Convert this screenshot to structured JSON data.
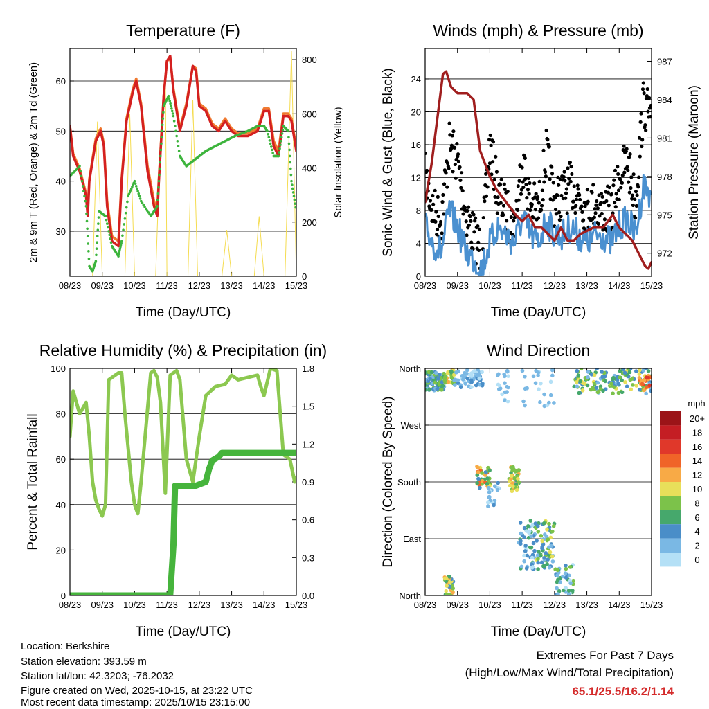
{
  "footer": {
    "location": "Location: Berkshire",
    "elevation": "Station elevation: 393.59 m",
    "latlon": "Station lat/lon: 42.3203; -76.2032",
    "created": "Figure created on Wed, 2025-10-15, at 23:22 UTC",
    "recent": "Most recent data timestamp: 2025/10/15 23:15:00",
    "extremes_title": "Extremes For Past 7 Days",
    "extremes_sub": "(High/Low/Max Wind/Total Precipitation)",
    "extremes_values": "65.1/25.5/16.2/1.14",
    "extremes_color": "#d42a2a"
  },
  "chart_data": [
    {
      "type": "line",
      "title": "Temperature (F)",
      "xlabel": "Time (Day/UTC)",
      "ylabel": "2m & 9m T (Red, Orange) & 2m Td (Green)",
      "ylabel_right": "Solar Insolation (Yellow)",
      "xticks": [
        "08/23",
        "09/23",
        "10/23",
        "11/23",
        "12/23",
        "13/23",
        "14/23",
        "15/23"
      ],
      "yticks": [
        "30",
        "40",
        "50",
        "60"
      ],
      "yticks_right": [
        "0",
        "200",
        "400",
        "600",
        "800"
      ],
      "ylim": [
        21,
        66.5
      ],
      "ylim_right": [
        0,
        841
      ],
      "series": [
        {
          "name": "Solar Insolation",
          "color": "#f5dc50",
          "axis": "right",
          "x": [
            0,
            0.7,
            0.85,
            1.0,
            1.7,
            1.85,
            2.0,
            2.65,
            2.8,
            2.95,
            3.0,
            3.65,
            3.8,
            3.95,
            4.7,
            4.85,
            5.0,
            5.7,
            5.85,
            6.0,
            6.65,
            6.85,
            7.0
          ],
          "y": [
            0,
            0,
            570,
            0,
            0,
            600,
            0,
            0,
            520,
            760,
            0,
            0,
            650,
            0,
            0,
            170,
            0,
            0,
            220,
            0,
            0,
            830,
            0
          ]
        },
        {
          "name": "9m T",
          "color": "#f07a30",
          "axis": "left",
          "x": [
            0,
            0.1,
            0.3,
            0.5,
            0.55,
            0.6,
            0.8,
            0.95,
            1.05,
            1.15,
            1.3,
            1.5,
            1.6,
            1.75,
            1.95,
            2.05,
            2.2,
            2.4,
            2.6,
            2.7,
            2.75,
            2.9,
            3.0,
            3.1,
            3.2,
            3.4,
            3.6,
            3.8,
            3.9,
            4.0,
            4.2,
            4.4,
            4.6,
            4.8,
            5.0,
            5.2,
            5.5,
            5.8,
            6.0,
            6.15,
            6.3,
            6.45,
            6.6,
            6.75,
            6.85,
            7.0
          ],
          "y": [
            51,
            45.5,
            42.5,
            37.5,
            34,
            40.5,
            48.5,
            50.5,
            47.5,
            36,
            29,
            28,
            40.5,
            52.5,
            58.5,
            60.5,
            55.5,
            43,
            36,
            34,
            40.5,
            57,
            64,
            64.5,
            58.5,
            50.5,
            55.5,
            63,
            62.5,
            55.5,
            54.5,
            51.5,
            50.5,
            52.5,
            50.5,
            49.5,
            49.5,
            50.5,
            54.5,
            54.5,
            48,
            46,
            53.5,
            53.5,
            52.5,
            46.5
          ]
        },
        {
          "name": "2m T",
          "color": "#d42020",
          "axis": "left",
          "x": [
            0,
            0.1,
            0.3,
            0.5,
            0.55,
            0.6,
            0.8,
            0.95,
            1.05,
            1.15,
            1.3,
            1.5,
            1.6,
            1.75,
            1.95,
            2.05,
            2.2,
            2.4,
            2.6,
            2.7,
            2.75,
            2.9,
            3.0,
            3.1,
            3.2,
            3.4,
            3.6,
            3.8,
            3.9,
            4.0,
            4.2,
            4.4,
            4.6,
            4.8,
            5.0,
            5.2,
            5.5,
            5.8,
            6.0,
            6.15,
            6.3,
            6.45,
            6.6,
            6.75,
            6.85,
            7.0
          ],
          "y": [
            51,
            45,
            42,
            37,
            33,
            40,
            48,
            50,
            47,
            35,
            28,
            27,
            40,
            52,
            58,
            60,
            55,
            42,
            35,
            33,
            40,
            57,
            64,
            65,
            58,
            50,
            55,
            63,
            62,
            55,
            54,
            51,
            50,
            52,
            50,
            49,
            49,
            50,
            54,
            54,
            47,
            45,
            53,
            53,
            52,
            46
          ]
        },
        {
          "name": "2m Td",
          "color": "#3cb43c",
          "axis": "left",
          "dots": true,
          "x": [
            0,
            0.3,
            0.5,
            0.6,
            0.7,
            0.8,
            0.9,
            1.1,
            1.3,
            1.5,
            1.6,
            1.8,
            2.0,
            2.2,
            2.5,
            2.7,
            2.8,
            2.9,
            3.05,
            3.2,
            3.4,
            3.6,
            3.8,
            4.0,
            4.2,
            4.5,
            4.8,
            5.1,
            5.5,
            5.8,
            6.0,
            6.1,
            6.3,
            6.45,
            6.6,
            6.75,
            6.85,
            7.0
          ],
          "y": [
            41,
            43,
            35,
            23,
            22,
            24,
            34,
            33,
            27,
            25,
            28,
            37,
            40,
            36,
            33,
            35,
            45,
            55,
            57,
            53,
            45,
            43,
            44,
            45,
            46,
            47,
            48,
            49,
            50,
            51,
            51,
            50,
            45,
            45,
            51,
            50,
            40,
            34
          ]
        }
      ]
    },
    {
      "type": "line",
      "title": "Winds (mph) & Pressure (mb)",
      "xlabel": "Time (Day/UTC)",
      "ylabel": "Sonic Wind & Gust (Blue, Black)",
      "ylabel_right": "Station Pressure (Maroon)",
      "xticks": [
        "08/23",
        "09/23",
        "10/23",
        "11/23",
        "12/23",
        "13/23",
        "14/23",
        "15/23"
      ],
      "yticks": [
        "0",
        "4",
        "8",
        "12",
        "16",
        "20",
        "24"
      ],
      "yticks_right": [
        "972",
        "975",
        "978",
        "981",
        "984",
        "987"
      ],
      "ylim": [
        0,
        27.7
      ],
      "ylim_right": [
        970.2,
        988.0
      ],
      "series": [
        {
          "name": "Gust",
          "color": "#000000",
          "axis": "left",
          "dots": true,
          "x": [
            0,
            0.25,
            0.5,
            0.75,
            1,
            1.25,
            1.5,
            1.75,
            2,
            2.25,
            2.5,
            2.75,
            3,
            3.25,
            3.5,
            3.75,
            4,
            4.25,
            4.5,
            4.75,
            5,
            5.25,
            5.5,
            5.75,
            6,
            6.25,
            6.5,
            6.75,
            7
          ],
          "y": [
            12,
            8,
            7,
            16,
            14,
            8,
            5,
            3,
            16,
            10,
            8,
            6,
            14,
            9,
            8,
            15,
            9,
            10,
            11,
            10,
            8,
            9,
            8,
            8,
            12,
            14,
            9,
            21,
            19
          ]
        },
        {
          "name": "Wind",
          "color": "#4a90d0",
          "axis": "left",
          "x": [
            0,
            0.25,
            0.5,
            0.75,
            1,
            1.25,
            1.5,
            1.75,
            2,
            2.25,
            2.5,
            2.75,
            3,
            3.25,
            3.5,
            3.75,
            4,
            4.25,
            4.5,
            4.75,
            5,
            5.25,
            5.5,
            5.75,
            6,
            6.25,
            6.5,
            6.75,
            7
          ],
          "y": [
            6,
            4,
            3,
            8,
            6,
            3,
            2,
            1,
            4,
            6,
            5,
            4,
            7,
            5,
            4,
            7,
            5,
            5,
            6,
            5,
            4,
            5,
            5,
            4,
            6,
            7,
            5,
            11,
            10
          ]
        },
        {
          "name": "Pressure",
          "color": "#a01e1e",
          "axis": "right",
          "x": [
            0,
            0.2,
            0.4,
            0.55,
            0.65,
            0.8,
            1,
            1.3,
            1.5,
            1.7,
            2,
            2.2,
            2.5,
            2.8,
            3,
            3.2,
            3.4,
            3.6,
            3.8,
            4,
            4.2,
            4.4,
            4.6,
            4.8,
            5.2,
            5.5,
            5.8,
            6,
            6.2,
            6.4,
            6.6,
            6.8,
            6.9,
            7
          ],
          "y": [
            976,
            979,
            983,
            986,
            986.2,
            985,
            984.5,
            984.5,
            984,
            980,
            978,
            977,
            976,
            975,
            974.5,
            975,
            974,
            974,
            973.5,
            973,
            974,
            973,
            973,
            973.5,
            974,
            974,
            975,
            974,
            973.5,
            973,
            972,
            971,
            970.8,
            971.3
          ]
        }
      ]
    },
    {
      "type": "line",
      "title": "Relative Humidity (%) & Precipitation (in)",
      "xlabel": "Time (Day/UTC)",
      "ylabel": "Percent & Total Rainfall",
      "xticks": [
        "08/23",
        "09/23",
        "10/23",
        "11/23",
        "12/23",
        "13/23",
        "14/23",
        "15/23"
      ],
      "yticks": [
        "0",
        "20",
        "40",
        "60",
        "80",
        "100"
      ],
      "yticks_right": [
        "0.0",
        "0.3",
        "0.6",
        "0.9",
        "1.2",
        "1.5",
        "1.8"
      ],
      "ylim": [
        0,
        100
      ],
      "ylim_right": [
        0,
        1.8
      ],
      "series": [
        {
          "name": "Relative Humidity",
          "color": "#8cc850",
          "axis": "left",
          "x": [
            0,
            0.1,
            0.3,
            0.5,
            0.6,
            0.7,
            0.8,
            0.9,
            1.0,
            1.1,
            1.2,
            1.5,
            1.6,
            1.7,
            1.9,
            2.0,
            2.1,
            2.2,
            2.5,
            2.6,
            2.7,
            2.8,
            2.95,
            3.1,
            3.3,
            3.4,
            3.6,
            3.8,
            4.0,
            4.2,
            4.5,
            4.8,
            5.0,
            5.2,
            5.5,
            5.8,
            5.9,
            6.0,
            6.2,
            6.4,
            6.6,
            6.8,
            6.95,
            7.0
          ],
          "y": [
            70,
            90,
            80,
            85,
            70,
            50,
            42,
            38,
            35,
            40,
            95,
            98,
            98,
            80,
            50,
            40,
            36,
            50,
            98,
            99,
            96,
            85,
            45,
            97,
            99,
            95,
            60,
            50,
            70,
            88,
            92,
            93,
            97,
            95,
            96,
            97,
            92,
            88,
            100,
            99,
            62,
            60,
            50,
            52
          ]
        },
        {
          "name": "Total Precipitation",
          "color": "#46b43c",
          "axis": "right",
          "x": [
            0,
            3.1,
            3.2,
            3.25,
            3.9,
            4.2,
            4.3,
            4.4,
            4.6,
            4.7,
            7.0
          ],
          "y": [
            0,
            0,
            0.4,
            0.87,
            0.87,
            0.9,
            1.0,
            1.07,
            1.1,
            1.13,
            1.13
          ]
        }
      ]
    },
    {
      "type": "scatter",
      "title": "Wind Direction",
      "xlabel": "Time (Day/UTC)",
      "ylabel": "Direction (Colored By Speed)",
      "xticks": [
        "08/23",
        "09/23",
        "10/23",
        "11/23",
        "12/23",
        "13/23",
        "14/23",
        "15/23"
      ],
      "yticks": [
        "North",
        "East",
        "South",
        "West",
        "North"
      ],
      "ylim": [
        0,
        360
      ],
      "legend": {
        "title": "mph",
        "labels": [
          "20+",
          "18",
          "16",
          "14",
          "12",
          "10",
          "8",
          "6",
          "4",
          "2",
          "0"
        ],
        "colors": [
          "#9b1418",
          "#c41e24",
          "#e0382a",
          "#f06428",
          "#f8aa46",
          "#e8df5a",
          "#7cc24a",
          "#46a86c",
          "#4a8ec8",
          "#7ab8e4",
          "#b4e0f6"
        ]
      },
      "clusters": [
        {
          "x": [
            0,
            0.6
          ],
          "dir": [
            325,
            355
          ],
          "speed": [
            2,
            9
          ],
          "n": 90
        },
        {
          "x": [
            0.6,
            0.9
          ],
          "dir": [
            335,
            360
          ],
          "speed": [
            6,
            12
          ],
          "n": 30
        },
        {
          "x": [
            0.6,
            0.9
          ],
          "dir": [
            0,
            30
          ],
          "speed": [
            4,
            12
          ],
          "n": 30
        },
        {
          "x": [
            0.9,
            1.8
          ],
          "dir": [
            330,
            358
          ],
          "speed": [
            0,
            4
          ],
          "n": 60
        },
        {
          "x": [
            1.6,
            2.0
          ],
          "dir": [
            170,
            205
          ],
          "speed": [
            4,
            14
          ],
          "n": 40
        },
        {
          "x": [
            1.9,
            2.3
          ],
          "dir": [
            140,
            180
          ],
          "speed": [
            0,
            4
          ],
          "n": 20
        },
        {
          "x": [
            2.6,
            2.9
          ],
          "dir": [
            165,
            205
          ],
          "speed": [
            6,
            12
          ],
          "n": 40
        },
        {
          "x": [
            2.2,
            2.6
          ],
          "dir": [
            300,
            360
          ],
          "speed": [
            0,
            3
          ],
          "n": 20
        },
        {
          "x": [
            2.9,
            3.4
          ],
          "dir": [
            40,
            120
          ],
          "speed": [
            0,
            6
          ],
          "n": 50
        },
        {
          "x": [
            3.4,
            4.0
          ],
          "dir": [
            40,
            120
          ],
          "speed": [
            2,
            10
          ],
          "n": 70
        },
        {
          "x": [
            4.0,
            4.6
          ],
          "dir": [
            0,
            50
          ],
          "speed": [
            0,
            8
          ],
          "n": 40
        },
        {
          "x": [
            4.6,
            7.0
          ],
          "dir": [
            320,
            360
          ],
          "speed": [
            2,
            10
          ],
          "n": 140
        },
        {
          "x": [
            6.6,
            7.0
          ],
          "dir": [
            325,
            350
          ],
          "speed": [
            10,
            16
          ],
          "n": 25
        },
        {
          "x": [
            3.0,
            4.0
          ],
          "dir": [
            300,
            360
          ],
          "speed": [
            0,
            3
          ],
          "n": 25
        }
      ]
    }
  ]
}
